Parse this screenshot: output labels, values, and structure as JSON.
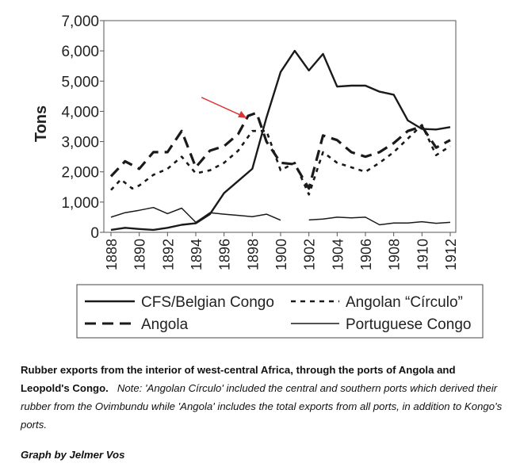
{
  "chart_data": {
    "type": "line",
    "title": "",
    "xlabel": "",
    "ylabel": "Tons",
    "ylim": [
      0,
      7000
    ],
    "xlim": [
      1888,
      1912
    ],
    "yticks": [
      "0",
      "1,000",
      "2,000",
      "3,000",
      "4,000",
      "5,000",
      "6,000",
      "7,000"
    ],
    "xticks": [
      "1888",
      "1890",
      "1892",
      "1894",
      "1896",
      "1898",
      "1900",
      "1902",
      "1904",
      "1906",
      "1908",
      "1910",
      "1912"
    ],
    "legend_position": "bottom",
    "annotation": "red arrow pointing to Angola peak near 1898",
    "series": [
      {
        "name": "CFS/Belgian Congo",
        "style": "solid-thick",
        "points": [
          [
            1888,
            80
          ],
          [
            1889,
            150
          ],
          [
            1890,
            110
          ],
          [
            1891,
            80
          ],
          [
            1892,
            150
          ],
          [
            1893,
            250
          ],
          [
            1894,
            300
          ],
          [
            1895,
            600
          ],
          [
            1896,
            1300
          ],
          [
            1897,
            1700
          ],
          [
            1898,
            2100
          ],
          [
            1899,
            3800
          ],
          [
            1900,
            5300
          ],
          [
            1901,
            6000
          ],
          [
            1902,
            5350
          ],
          [
            1903,
            5900
          ],
          [
            1904,
            4820
          ],
          [
            1905,
            4850
          ],
          [
            1906,
            4850
          ],
          [
            1907,
            4650
          ],
          [
            1908,
            4550
          ],
          [
            1909,
            3700
          ],
          [
            1910,
            3420
          ],
          [
            1911,
            3400
          ],
          [
            1912,
            3480
          ]
        ]
      },
      {
        "name": "Angolan “Círculo”",
        "style": "dotted",
        "points": [
          [
            1888,
            1400
          ],
          [
            1888.7,
            1750
          ],
          [
            1889.5,
            1450
          ],
          [
            1890,
            1550
          ],
          [
            1891,
            1900
          ],
          [
            1892,
            2100
          ],
          [
            1893,
            2500
          ],
          [
            1894,
            1950
          ],
          [
            1895,
            2050
          ],
          [
            1896,
            2300
          ],
          [
            1897,
            2700
          ],
          [
            1898,
            3350
          ],
          [
            1899,
            3350
          ],
          [
            1900,
            2050
          ],
          [
            1901,
            2300
          ],
          [
            1902,
            1250
          ],
          [
            1903,
            2650
          ],
          [
            1904,
            2300
          ],
          [
            1905,
            2150
          ],
          [
            1906,
            2000
          ],
          [
            1907,
            2300
          ],
          [
            1908,
            2650
          ],
          [
            1909,
            3100
          ],
          [
            1910,
            3550
          ],
          [
            1911,
            2550
          ],
          [
            1912,
            2850
          ]
        ]
      },
      {
        "name": "Angola",
        "style": "dashed",
        "points": [
          [
            1888,
            1850
          ],
          [
            1889,
            2350
          ],
          [
            1890,
            2100
          ],
          [
            1891,
            2650
          ],
          [
            1892,
            2650
          ],
          [
            1893,
            3350
          ],
          [
            1894,
            2150
          ],
          [
            1895,
            2700
          ],
          [
            1896,
            2850
          ],
          [
            1897,
            3250
          ],
          [
            1897.7,
            3850
          ],
          [
            1898.3,
            3950
          ],
          [
            1899,
            3000
          ],
          [
            1900,
            2300
          ],
          [
            1901,
            2250
          ],
          [
            1902,
            1450
          ],
          [
            1903,
            3200
          ],
          [
            1904,
            3050
          ],
          [
            1905,
            2650
          ],
          [
            1906,
            2500
          ],
          [
            1907,
            2650
          ],
          [
            1908,
            2950
          ],
          [
            1909,
            3350
          ],
          [
            1910,
            3500
          ],
          [
            1911,
            2800
          ],
          [
            1912,
            3050
          ]
        ]
      },
      {
        "name": "Portuguese Congo",
        "style": "solid-thin",
        "points": [
          [
            1888,
            500
          ],
          [
            1889,
            650
          ],
          [
            1890,
            730
          ],
          [
            1891,
            820
          ],
          [
            1892,
            620
          ],
          [
            1893,
            800
          ],
          [
            1894,
            330
          ],
          [
            1895,
            650
          ],
          [
            1896,
            600
          ],
          [
            1897,
            560
          ],
          [
            1898,
            520
          ],
          [
            1899,
            600
          ],
          [
            1900,
            400
          ],
          null,
          [
            1902,
            410
          ],
          [
            1903,
            440
          ],
          [
            1904,
            500
          ],
          [
            1905,
            480
          ],
          [
            1906,
            500
          ],
          [
            1907,
            250
          ],
          [
            1908,
            310
          ],
          [
            1909,
            310
          ],
          [
            1910,
            350
          ],
          [
            1911,
            300
          ],
          [
            1912,
            330
          ]
        ]
      }
    ]
  },
  "caption": {
    "bold": "Rubber exports from the interior of west-central Africa, through the ports of Angola and Leopold's Congo.",
    "note": "Note: 'Angolan Círculo' included the central and southern ports which derived their rubber from the Ovimbundu while 'Angola' includes the total exports from all ports, in addition to Kongo's ports."
  },
  "credit": "Graph by Jelmer Vos",
  "colors": {
    "line": "#1a1a1a",
    "arrow": "#e03030",
    "frame": "#555555"
  }
}
